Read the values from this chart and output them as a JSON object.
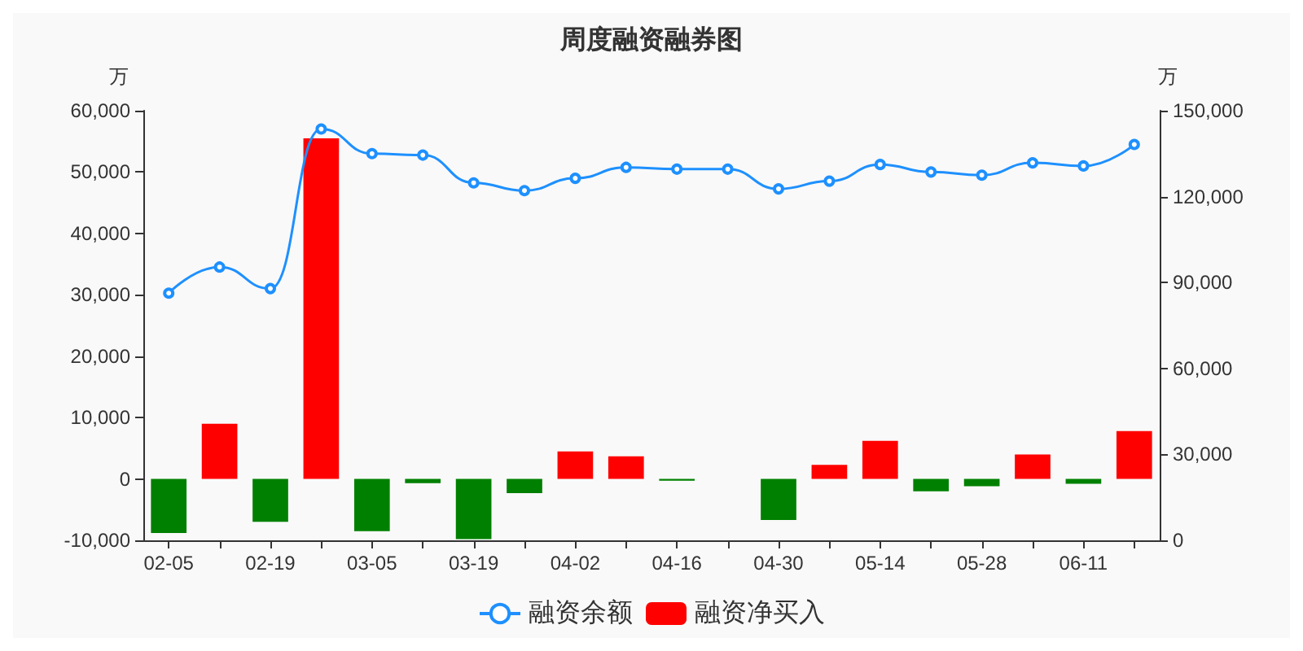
{
  "chart_data": {
    "type": "bar",
    "title": "周度融资融券图",
    "ylabel": "万",
    "y2label": "万",
    "categories": [
      "02-05",
      null,
      "02-19",
      null,
      "03-05",
      null,
      "03-19",
      null,
      "04-02",
      null,
      "04-16",
      null,
      "04-30",
      null,
      "05-14",
      null,
      "05-28",
      null,
      "06-11",
      null
    ],
    "series": [
      {
        "name": "融资余额",
        "type": "line",
        "axis": "y2",
        "color": "#1e90ff",
        "marker": "circle",
        "values": [
          86300,
          95400,
          87900,
          143600,
          135000,
          134500,
          124800,
          122100,
          126400,
          130200,
          129600,
          129600,
          122700,
          125400,
          131200,
          128600,
          127500,
          131800,
          130700,
          138200
        ]
      },
      {
        "name": "融资净买入",
        "color": "#ff0000",
        "colors": [
          "#008000",
          "#ff0000",
          "#008000",
          "#ff0000",
          "#008000",
          "#008000",
          "#008000",
          "#008000",
          "#ff0000",
          "#ff0000",
          "#008000",
          "#008000",
          "#008000",
          "#ff0000",
          "#ff0000",
          "#008000",
          "#008000",
          "#ff0000",
          "#008000",
          "#ff0000"
        ],
        "values": [
          -8800,
          9000,
          -7000,
          55500,
          -8500,
          -700,
          -9800,
          -2300,
          4500,
          3700,
          -300,
          null,
          -6700,
          2300,
          6200,
          -2000,
          -1200,
          4000,
          -800,
          7800
        ]
      }
    ],
    "ylim": [
      -10000,
      60000
    ],
    "yticks": [
      {
        "value": -10000,
        "label": "-10,000"
      },
      0,
      {
        "value": 10000,
        "label": "10,000"
      },
      {
        "value": 20000,
        "label": "20,000"
      },
      {
        "value": 30000,
        "label": "30,000"
      },
      {
        "value": 40000,
        "label": "40,000"
      },
      {
        "value": 50000,
        "label": "50,000"
      },
      {
        "value": 60000,
        "label": "60,000"
      }
    ],
    "y2lim": [
      0,
      150000
    ],
    "y2ticks": [
      0,
      {
        "value": 30000,
        "label": "30,000"
      },
      {
        "value": 60000,
        "label": "60,000"
      },
      {
        "value": 90000,
        "label": "90,000"
      },
      {
        "value": 120000,
        "label": "120,000"
      },
      {
        "value": 150000,
        "label": "150,000"
      }
    ],
    "grid": false,
    "legend": "bottom"
  }
}
